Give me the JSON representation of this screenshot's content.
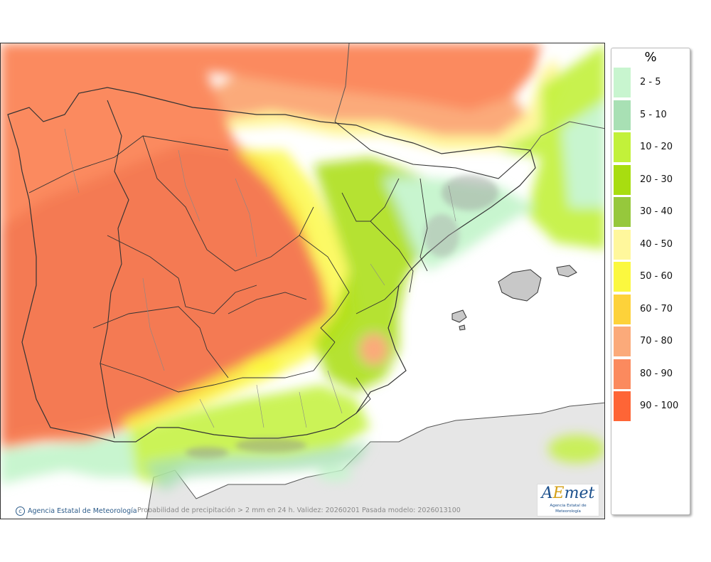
{
  "map": {
    "credit": "Agencia Estatal de Meteorología",
    "description": "Probabilidad de precipitación > 2 mm en 24 h. Validez: 20260201 Pasada modelo: 2026013100",
    "logo_text": "AEmet",
    "logo_subtext": "Agencia Estatal de Meteorología",
    "region": "Península Ibérica y Baleares"
  },
  "legend": {
    "unit": "%",
    "classes": [
      {
        "label": "2 - 5",
        "color": "#c8f5cf"
      },
      {
        "label": "5 - 10",
        "color": "#a8e0b4"
      },
      {
        "label": "10 - 20",
        "color": "#c2f13a"
      },
      {
        "label": "20 - 30",
        "color": "#a8dd10"
      },
      {
        "label": "30 - 40",
        "color": "#96c83c"
      },
      {
        "label": "40 - 50",
        "color": "#fff79c"
      },
      {
        "label": "50 - 60",
        "color": "#fbf83f"
      },
      {
        "label": "60 - 70",
        "color": "#fdd23a"
      },
      {
        "label": "70 - 80",
        "color": "#fbaa7a"
      },
      {
        "label": "80 - 90",
        "color": "#fb8a5e"
      },
      {
        "label": "90 - 100",
        "color": "#fe6536"
      }
    ]
  }
}
